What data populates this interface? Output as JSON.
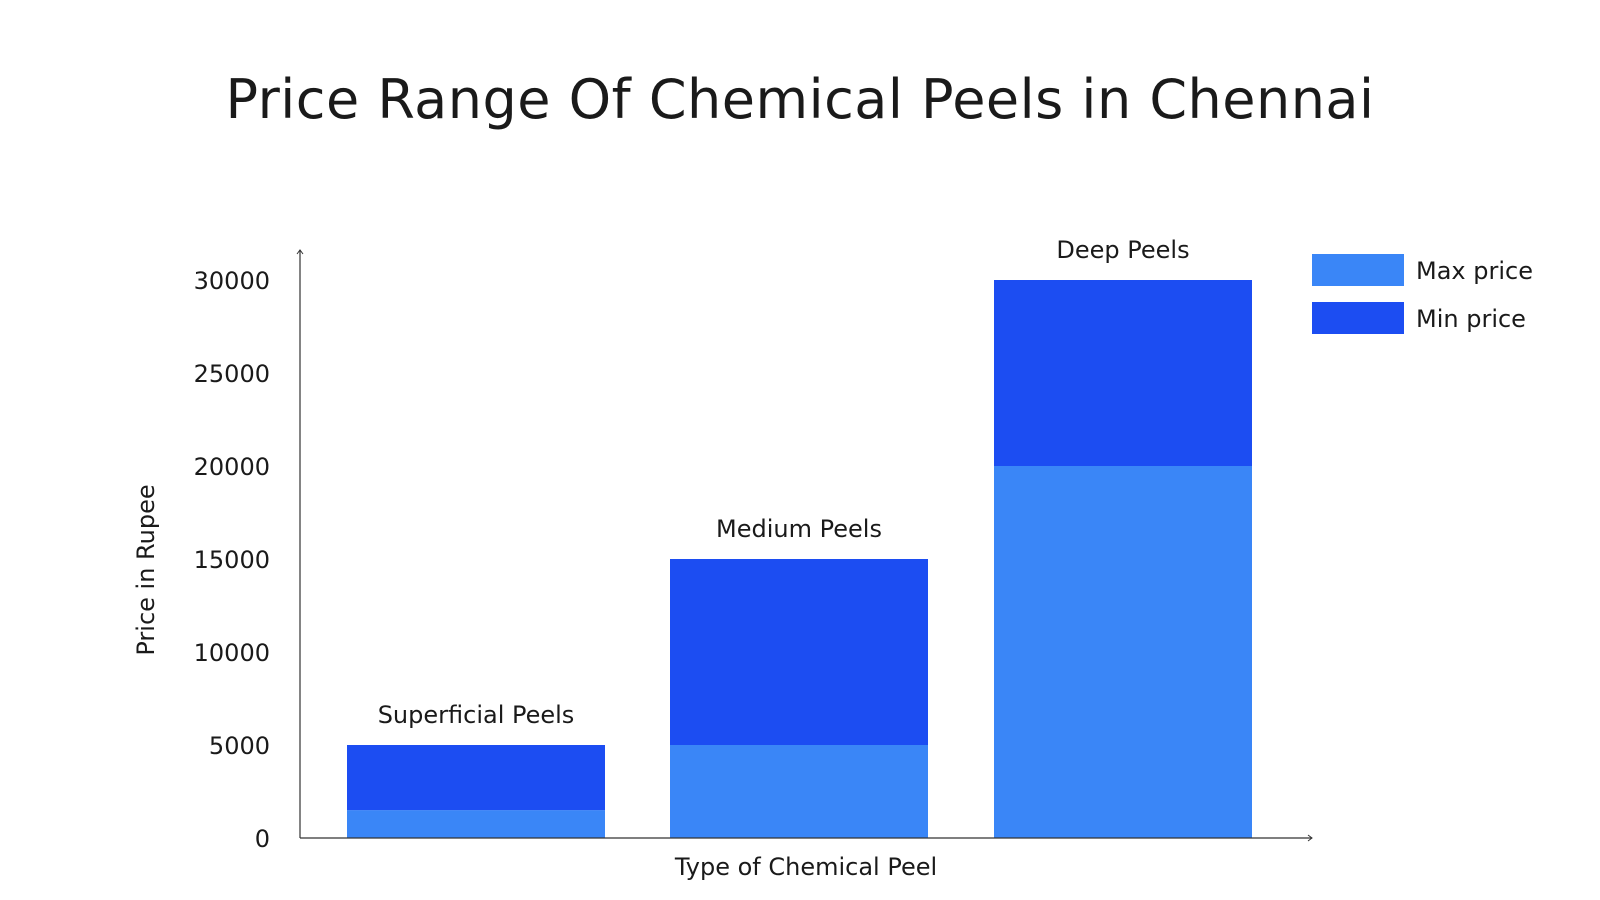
{
  "chart_data": {
    "type": "bar",
    "title": "Price Range Of Chemical Peels in Chennai",
    "xlabel": "Type of Chemical Peel",
    "ylabel": "Price in Rupee",
    "categories": [
      "Superficial Peels",
      "Medium Peels",
      "Deep Peels"
    ],
    "stacked": true,
    "series": [
      {
        "name": "Max price",
        "values": [
          1500,
          5000,
          20000
        ],
        "color": "#3A86F7"
      },
      {
        "name": "Min price",
        "values": [
          3500,
          10000,
          10000
        ],
        "color": "#1C4DF2"
      }
    ],
    "yticks": [
      0,
      5000,
      10000,
      15000,
      20000,
      25000,
      30000
    ],
    "ylim": [
      0,
      30000
    ],
    "grid": false,
    "legend": "top-right",
    "bar_labels": true
  }
}
